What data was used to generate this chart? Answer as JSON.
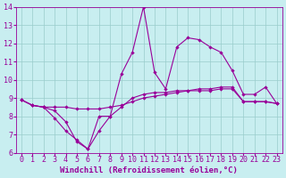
{
  "xlabel": "Windchill (Refroidissement éolien,°C)",
  "background_color": "#c8eef0",
  "line_color": "#990099",
  "xlim": [
    -0.5,
    23.5
  ],
  "ylim": [
    6,
    14
  ],
  "yticks": [
    6,
    7,
    8,
    9,
    10,
    11,
    12,
    13,
    14
  ],
  "xticks": [
    0,
    1,
    2,
    3,
    4,
    5,
    6,
    7,
    8,
    9,
    10,
    11,
    12,
    13,
    14,
    15,
    16,
    17,
    18,
    19,
    20,
    21,
    22,
    23
  ],
  "line1_x": [
    0,
    1,
    2,
    3,
    4,
    5,
    6,
    7,
    8,
    9,
    10,
    11,
    12,
    13,
    14,
    15,
    16,
    17,
    18,
    19,
    20,
    21,
    22,
    23
  ],
  "line1_y": [
    8.9,
    8.6,
    8.5,
    7.9,
    7.2,
    6.7,
    6.2,
    7.2,
    8.0,
    8.5,
    9.0,
    9.2,
    9.3,
    9.3,
    9.4,
    9.4,
    9.4,
    9.4,
    9.5,
    9.5,
    8.8,
    8.8,
    8.8,
    8.7
  ],
  "line2_x": [
    0,
    1,
    2,
    3,
    4,
    5,
    6,
    7,
    8,
    9,
    10,
    11,
    12,
    13,
    14,
    15,
    16,
    17,
    18,
    19,
    20,
    21,
    22,
    23
  ],
  "line2_y": [
    8.9,
    8.6,
    8.5,
    8.5,
    8.5,
    8.4,
    8.4,
    8.4,
    8.5,
    8.6,
    8.8,
    9.0,
    9.1,
    9.2,
    9.3,
    9.4,
    9.5,
    9.5,
    9.6,
    9.6,
    8.8,
    8.8,
    8.8,
    8.7
  ],
  "line3_x": [
    0,
    1,
    2,
    3,
    4,
    5,
    6,
    7,
    8,
    9,
    10,
    11,
    12,
    13,
    14,
    15,
    16,
    17,
    18,
    19,
    20,
    21,
    22,
    23
  ],
  "line3_y": [
    8.9,
    8.6,
    8.5,
    8.3,
    7.7,
    6.6,
    6.2,
    8.0,
    8.0,
    10.3,
    11.5,
    14.0,
    10.4,
    9.5,
    11.8,
    12.3,
    12.2,
    11.8,
    11.5,
    10.5,
    9.2,
    9.2,
    9.6,
    8.7
  ],
  "grid_color": "#99cccc",
  "xlabel_fontsize": 6.5,
  "tick_fontsize": 6,
  "linewidth": 0.8,
  "markersize": 2.2
}
